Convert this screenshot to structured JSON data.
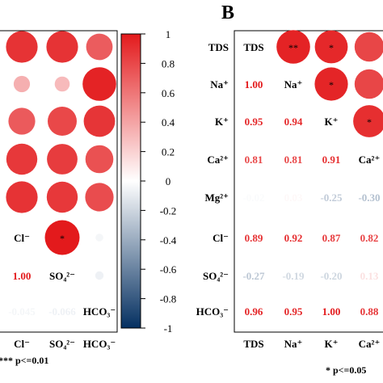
{
  "chart_data": [
    {
      "type": "heatmap",
      "panel": "",
      "title": "",
      "cols": [
        "Cl⁻",
        "SO₄²⁻",
        "HCO₃⁻"
      ],
      "bottom_labels": [
        "Cl⁻",
        "SO₄²⁻",
        "HCO₃⁻"
      ],
      "diag_labels": [
        "Cl⁻",
        "SO₄²⁻",
        "HCO₃⁻"
      ],
      "circles": [
        {
          "row": 0,
          "col": 0,
          "value": 0.89,
          "sig": ""
        },
        {
          "row": 0,
          "col": 1,
          "value": 0.89,
          "sig": ""
        },
        {
          "row": 0,
          "col": 2,
          "value": 0.71,
          "sig": ""
        },
        {
          "row": 1,
          "col": 0,
          "value": 0.35,
          "sig": ""
        },
        {
          "row": 1,
          "col": 1,
          "value": 0.3,
          "sig": ""
        },
        {
          "row": 1,
          "col": 2,
          "value": 0.96,
          "sig": ""
        },
        {
          "row": 2,
          "col": 0,
          "value": 0.72,
          "sig": ""
        },
        {
          "row": 2,
          "col": 1,
          "value": 0.8,
          "sig": ""
        },
        {
          "row": 2,
          "col": 2,
          "value": 0.88,
          "sig": ""
        },
        {
          "row": 3,
          "col": 0,
          "value": 0.87,
          "sig": ""
        },
        {
          "row": 3,
          "col": 1,
          "value": 0.85,
          "sig": ""
        },
        {
          "row": 3,
          "col": 2,
          "value": 0.76,
          "sig": ""
        },
        {
          "row": 4,
          "col": 0,
          "value": 0.89,
          "sig": ""
        },
        {
          "row": 4,
          "col": 1,
          "value": 0.87,
          "sig": ""
        },
        {
          "row": 4,
          "col": 2,
          "value": 0.78,
          "sig": ""
        },
        {
          "row": 5,
          "col": 1,
          "value": 1.0,
          "sig": "*"
        },
        {
          "row": 5,
          "col": 2,
          "value": -0.045,
          "sig": ""
        },
        {
          "row": 6,
          "col": 2,
          "value": -0.066,
          "sig": ""
        }
      ],
      "numbers": [
        {
          "row": 6,
          "col": 0,
          "text": "1.00",
          "value": 1.0
        },
        {
          "row": 7,
          "col": 0,
          "text": "-0.045",
          "value": -0.045
        },
        {
          "row": 7,
          "col": 1,
          "text": "-0.066",
          "value": -0.066
        }
      ],
      "footnote": "*** p<=0.01"
    },
    {
      "type": "heatmap",
      "panel": "B",
      "title": "",
      "row_labels": [
        "TDS",
        "Na⁺",
        "K⁺",
        "Ca²⁺",
        "Mg²⁺",
        "Cl⁻",
        "SO₄²⁻",
        "HCO₃⁻"
      ],
      "col_labels": [
        "TDS",
        "Na⁺",
        "K⁺",
        "Ca²⁺"
      ],
      "diag_labels": [
        "TDS",
        "Na⁺",
        "K⁺",
        "Ca²⁺"
      ],
      "circles": [
        {
          "row": 0,
          "col": 1,
          "value": 0.96,
          "sig": "**"
        },
        {
          "row": 0,
          "col": 2,
          "value": 0.94,
          "sig": "*"
        },
        {
          "row": 0,
          "col": 3,
          "value": 0.81,
          "sig": ""
        },
        {
          "row": 1,
          "col": 2,
          "value": 0.95,
          "sig": "*"
        },
        {
          "row": 1,
          "col": 3,
          "value": 0.81,
          "sig": ""
        },
        {
          "row": 2,
          "col": 3,
          "value": 0.91,
          "sig": "*"
        }
      ],
      "numbers": [
        {
          "row": 1,
          "col": 0,
          "text": "1.00",
          "value": 1.0
        },
        {
          "row": 2,
          "col": 0,
          "text": "0.95",
          "value": 0.95
        },
        {
          "row": 2,
          "col": 1,
          "text": "0.94",
          "value": 0.94
        },
        {
          "row": 3,
          "col": 0,
          "text": "0.81",
          "value": 0.81
        },
        {
          "row": 3,
          "col": 1,
          "text": "0.81",
          "value": 0.81
        },
        {
          "row": 3,
          "col": 2,
          "text": "0.91",
          "value": 0.91
        },
        {
          "row": 4,
          "col": 0,
          "text": "-0.02",
          "value": -0.02
        },
        {
          "row": 4,
          "col": 1,
          "text": "0.03",
          "value": 0.03
        },
        {
          "row": 4,
          "col": 2,
          "text": "-0.25",
          "value": -0.25
        },
        {
          "row": 4,
          "col": 3,
          "text": "-0.30",
          "value": -0.3
        },
        {
          "row": 5,
          "col": 0,
          "text": "0.89",
          "value": 0.89
        },
        {
          "row": 5,
          "col": 1,
          "text": "0.92",
          "value": 0.92
        },
        {
          "row": 5,
          "col": 2,
          "text": "0.87",
          "value": 0.87
        },
        {
          "row": 5,
          "col": 3,
          "text": "0.82",
          "value": 0.82
        },
        {
          "row": 6,
          "col": 0,
          "text": "-0.27",
          "value": -0.27
        },
        {
          "row": 6,
          "col": 1,
          "text": "-0.19",
          "value": -0.19
        },
        {
          "row": 6,
          "col": 2,
          "text": "-0.20",
          "value": -0.2
        },
        {
          "row": 6,
          "col": 3,
          "text": "0.13",
          "value": 0.13
        },
        {
          "row": 7,
          "col": 0,
          "text": "0.96",
          "value": 0.96
        },
        {
          "row": 7,
          "col": 1,
          "text": "0.95",
          "value": 0.95
        },
        {
          "row": 7,
          "col": 2,
          "text": "1.00",
          "value": 1.0
        },
        {
          "row": 7,
          "col": 3,
          "text": "0.88",
          "value": 0.88
        }
      ],
      "footnote": "* p<=0.05"
    }
  ],
  "colorbar": {
    "ticks": [
      "1",
      "0.8",
      "0.6",
      "0.4",
      "0.2",
      "0",
      "-0.2",
      "-0.4",
      "-0.6",
      "-0.8",
      "-1"
    ],
    "range": [
      -1,
      1
    ],
    "colors": {
      "neg": "#053061",
      "mid": "#ffffff",
      "pos": "#e31a1c"
    }
  }
}
